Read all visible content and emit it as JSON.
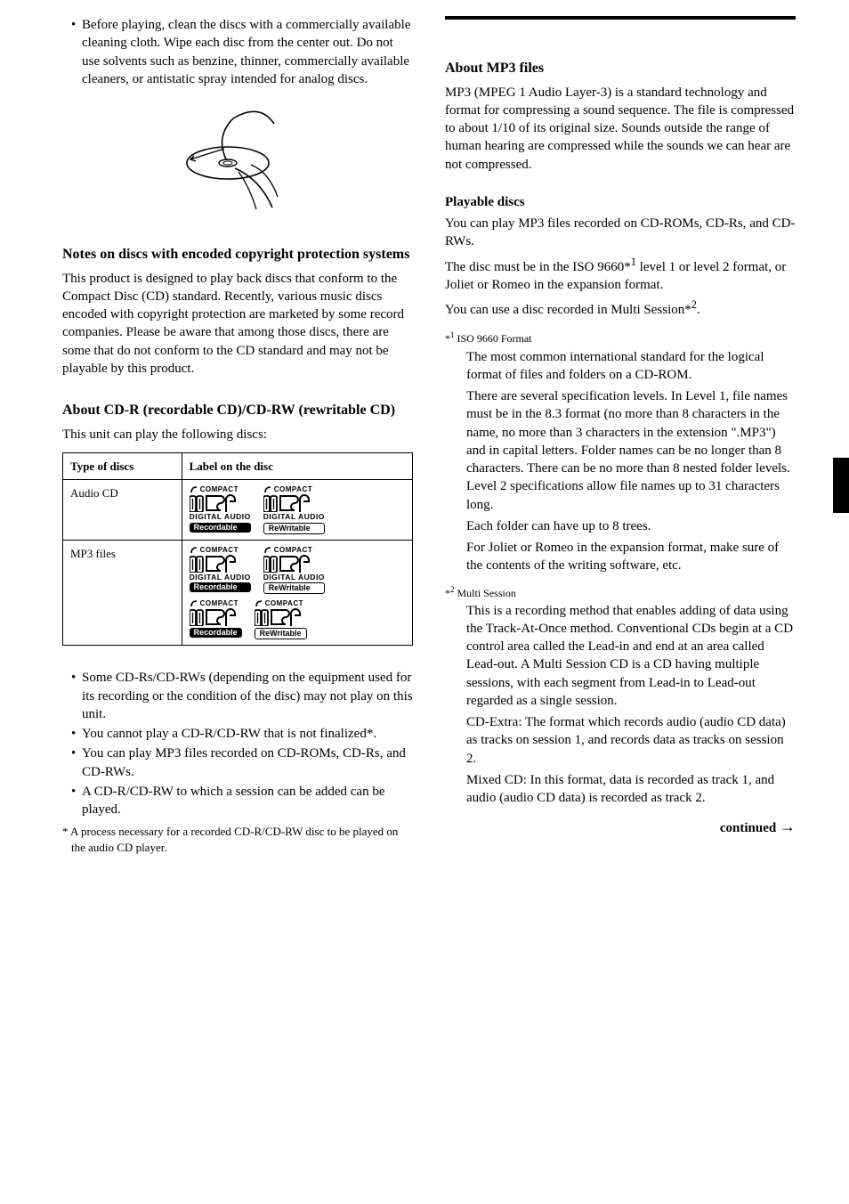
{
  "left": {
    "bullet1": "Before playing, clean the discs with a commercially available cleaning cloth. Wipe each disc from the center out. Do not use solvents such as benzine, thinner, commercially available cleaners, or antistatic spray intended for analog discs.",
    "heading_copy": "Notes on discs with encoded copyright protection systems",
    "copy_para": "This product is designed to play back discs that conform to the Compact Disc (CD) standard. Recently, various music discs encoded with copyright protection are marketed by some record companies. Please be aware that among those discs, there are some that do not conform to the CD standard and may not be playable by this product.",
    "heading_cdr": "About CD-R (recordable CD)/CD-RW (rewritable CD)",
    "cdr_intro": "This unit can play the following discs:",
    "table": {
      "headers": [
        "Type of discs",
        "Label on the disc"
      ],
      "rows": [
        {
          "label": "Audio CD",
          "logos": [
            {
              "da": true,
              "pill": "Recordable",
              "style": "solid"
            },
            {
              "da": true,
              "pill": "ReWritable",
              "style": "outline"
            }
          ]
        },
        {
          "label": "MP3 files",
          "logos": [
            {
              "da": true,
              "pill": "Recordable",
              "style": "solid"
            },
            {
              "da": true,
              "pill": "ReWritable",
              "style": "outline"
            },
            {
              "da": false,
              "pill": "Recordable",
              "style": "solid"
            },
            {
              "da": false,
              "pill": "ReWritable",
              "style": "outline"
            }
          ]
        }
      ]
    },
    "post_bullets": [
      "Some CD-Rs/CD-RWs (depending on the equipment used for its recording or the condition of the disc) may not play on this unit.",
      "You cannot play a CD-R/CD-RW that is not finalized*.",
      "You can play MP3 files recorded on CD-ROMs, CD-Rs, and CD-RWs.",
      "A CD-R/CD-RW to which a session can be added can be played."
    ],
    "footnote": "* A process necessary for a recorded CD-R/CD-RW disc to be played on the audio CD player."
  },
  "right": {
    "heading_mp3": "About MP3 files",
    "mp3_para": "MP3 (MPEG 1 Audio Layer-3) is a standard technology and format for compressing a sound sequence. The file is compressed to about 1/10 of its original size. Sounds outside the range of human hearing are compressed while the sounds we can hear are not compressed.",
    "sub_playable": "Playable discs",
    "playable_p1": "You can play MP3 files recorded on CD-ROMs, CD-Rs, and CD-RWs.",
    "playable_p2_a": "The disc must be in the ISO 9660*",
    "playable_p2_sup1": "1",
    "playable_p2_b": " level 1 or level 2 format, or Joliet or Romeo in the expansion format.",
    "playable_p3_a": "You can use a disc recorded in Multi Session*",
    "playable_p3_sup": "2",
    "playable_p3_b": ".",
    "star1_label": "*1 ISO 9660 Format",
    "star1_p1": "The most common international standard for the logical format of files and folders on a CD-ROM.",
    "star1_p2": "There are several specification levels. In Level 1, file names must be in the 8.3 format (no more than 8 characters in the name, no more than 3 characters in the extension \".MP3\") and in capital letters. Folder names can be no longer than 8 characters. There can be no more than 8 nested folder levels. Level 2 specifications allow file names up to 31 characters long.",
    "star1_p3": "Each folder can have up to 8 trees.",
    "star1_p4": "For Joliet or Romeo in the expansion format, make sure of the contents of the writing software, etc.",
    "star2_label": "*2 Multi Session",
    "star2_p1": "This is a recording method that enables adding of data using the Track-At-Once method. Conventional CDs begin at a CD control area called the Lead-in and end at an area called Lead-out. A Multi Session CD is a CD having multiple sessions, with each segment from Lead-in to Lead-out regarded as a single session.",
    "star2_p2": "CD-Extra: The format which records audio (audio CD data) as tracks on session 1, and records data as tracks on session 2.",
    "star2_p3": "Mixed CD: In this format, data is recorded as track 1, and audio (audio CD data) is recorded as track 2.",
    "continued": "continued"
  }
}
